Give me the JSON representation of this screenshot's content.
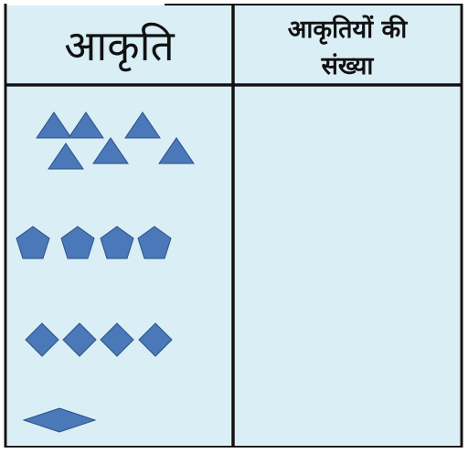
{
  "table": {
    "header": {
      "col1": "आकृति",
      "col2_line1": "आकृतियों की",
      "col2_line2": "संख्या"
    },
    "rows": [
      {
        "shape": "triangle",
        "count": 6,
        "answer": ""
      },
      {
        "shape": "pentagon",
        "count": 4,
        "answer": ""
      },
      {
        "shape": "diamond",
        "count": 4,
        "answer": ""
      },
      {
        "shape": "rhombus",
        "count": 1,
        "answer": ""
      }
    ]
  },
  "colors": {
    "cell_fill": "#daeef6",
    "shape_fill": "#4a78b9",
    "shape_stroke": "#2c5285",
    "grid_line": "#111111"
  }
}
